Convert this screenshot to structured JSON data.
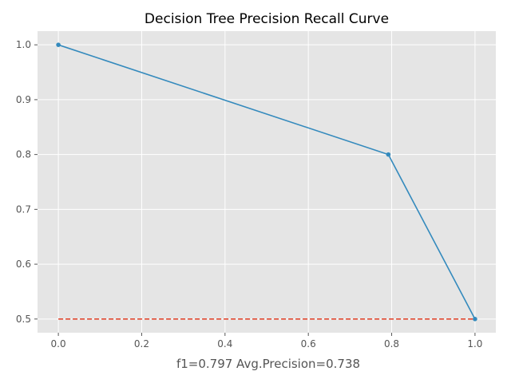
{
  "chart_data": {
    "type": "line",
    "title": "Decision Tree Precision Recall Curve",
    "xlabel": "f1=0.797  Avg.Precision=0.738",
    "ylabel": "",
    "xlim": [
      -0.05,
      1.05
    ],
    "ylim": [
      0.475,
      1.025
    ],
    "xticks": [
      "0.0",
      "0.2",
      "0.4",
      "0.6",
      "0.8",
      "1.0"
    ],
    "yticks": [
      "0.5",
      "0.6",
      "0.7",
      "0.8",
      "0.9",
      "1.0"
    ],
    "grid": true,
    "style": "ggplot",
    "series": [
      {
        "kind": "solid-line-with-markers",
        "color": "#348ABD",
        "x": [
          0.0,
          0.792,
          1.0
        ],
        "y": [
          1.0,
          0.8,
          0.5
        ]
      },
      {
        "kind": "dashed-line",
        "color": "#E24A33",
        "x": [
          0.0,
          1.0
        ],
        "y": [
          0.5,
          0.5
        ]
      }
    ],
    "colors": {
      "plot_background": "#E5E5E5",
      "grid": "#FFFFFF",
      "tick_label": "#555555"
    }
  }
}
